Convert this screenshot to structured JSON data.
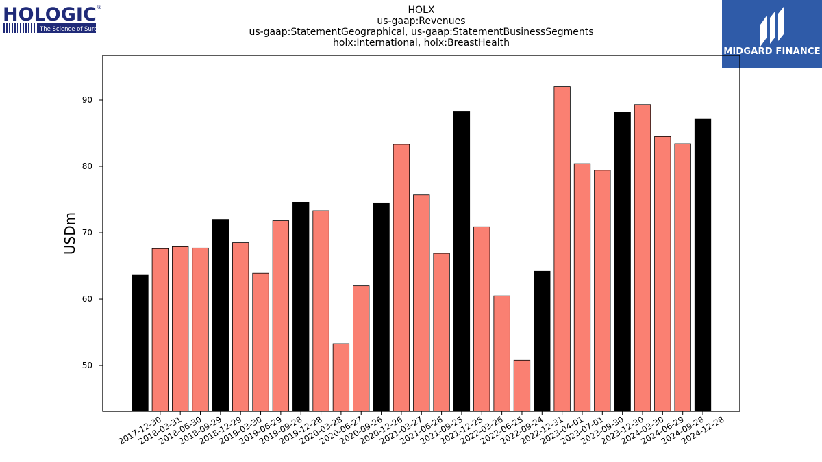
{
  "header": {
    "title_lines": [
      "HOLX",
      "us-gaap:Revenues",
      "us-gaap:StatementGeographical, us-gaap:StatementBusinessSegments",
      "holx:International, holx:BreastHealth"
    ]
  },
  "logos": {
    "left": {
      "name": "HOLOGIC",
      "tagline": "The Science of Sure",
      "color": "#1f2a78"
    },
    "right": {
      "name": "MIDGARD FINANCE",
      "color": "#2f5ba8"
    }
  },
  "chart_data": {
    "type": "bar",
    "ylabel": "USDm",
    "xlabel": "",
    "ylim": [
      43.1,
      96.7
    ],
    "yticks": [
      50,
      60,
      70,
      80,
      90
    ],
    "categories": [
      "2017-12-30",
      "2018-03-31",
      "2018-06-30",
      "2018-09-29",
      "2018-12-29",
      "2019-03-30",
      "2019-06-29",
      "2019-09-28",
      "2019-12-28",
      "2020-03-28",
      "2020-06-27",
      "2020-09-26",
      "2020-12-26",
      "2021-03-27",
      "2021-06-26",
      "2021-09-25",
      "2021-12-25",
      "2022-03-26",
      "2022-06-25",
      "2022-09-24",
      "2022-12-31",
      "2023-04-01",
      "2023-07-01",
      "2023-09-30",
      "2023-12-30",
      "2024-03-30",
      "2024-06-29",
      "2024-09-28",
      "2024-12-28"
    ],
    "values": [
      63.6,
      67.6,
      67.9,
      67.7,
      72.0,
      68.5,
      63.9,
      71.8,
      74.6,
      73.3,
      53.3,
      62.0,
      74.5,
      83.3,
      75.7,
      66.9,
      88.3,
      70.9,
      60.5,
      50.8,
      64.2,
      92.0,
      80.4,
      79.4,
      88.2,
      89.3,
      84.5,
      83.4,
      87.1
    ],
    "highlight": [
      true,
      false,
      false,
      false,
      true,
      false,
      false,
      false,
      true,
      false,
      false,
      false,
      true,
      false,
      false,
      false,
      true,
      false,
      false,
      false,
      true,
      false,
      false,
      false,
      true,
      false,
      false,
      false,
      true
    ],
    "colors": {
      "highlight": "#000000",
      "normal": "#fa8072",
      "edge": "#000000"
    },
    "grid": false,
    "legend": "none"
  }
}
